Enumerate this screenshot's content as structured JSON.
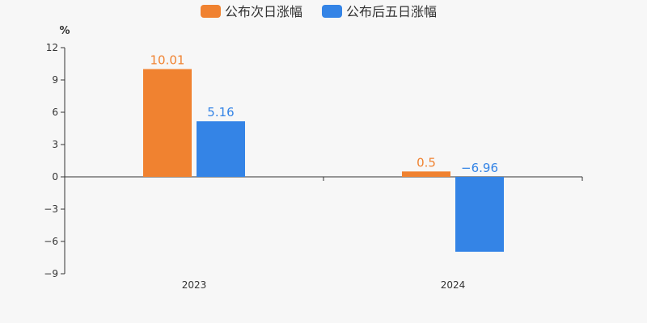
{
  "chart_data": {
    "type": "bar",
    "categories": [
      "2023",
      "2024"
    ],
    "series": [
      {
        "name": "公布次日涨幅",
        "values": [
          10.01,
          0.5
        ],
        "labels": [
          "10.01",
          "0.5"
        ],
        "color": "#f08230"
      },
      {
        "name": "公布后五日涨幅",
        "values": [
          5.16,
          -6.96
        ],
        "labels": [
          "5.16",
          "−6.96"
        ],
        "color": "#3484e6"
      }
    ],
    "y_unit": "%",
    "ylim": [
      -9,
      12
    ],
    "yticks": [
      12,
      9,
      6,
      3,
      0,
      -3,
      -6,
      -9
    ],
    "ytick_labels": [
      "12",
      "9",
      "6",
      "3",
      "0",
      "−3",
      "−6",
      "−9"
    ],
    "legend_position": "top-center",
    "grid": false
  }
}
